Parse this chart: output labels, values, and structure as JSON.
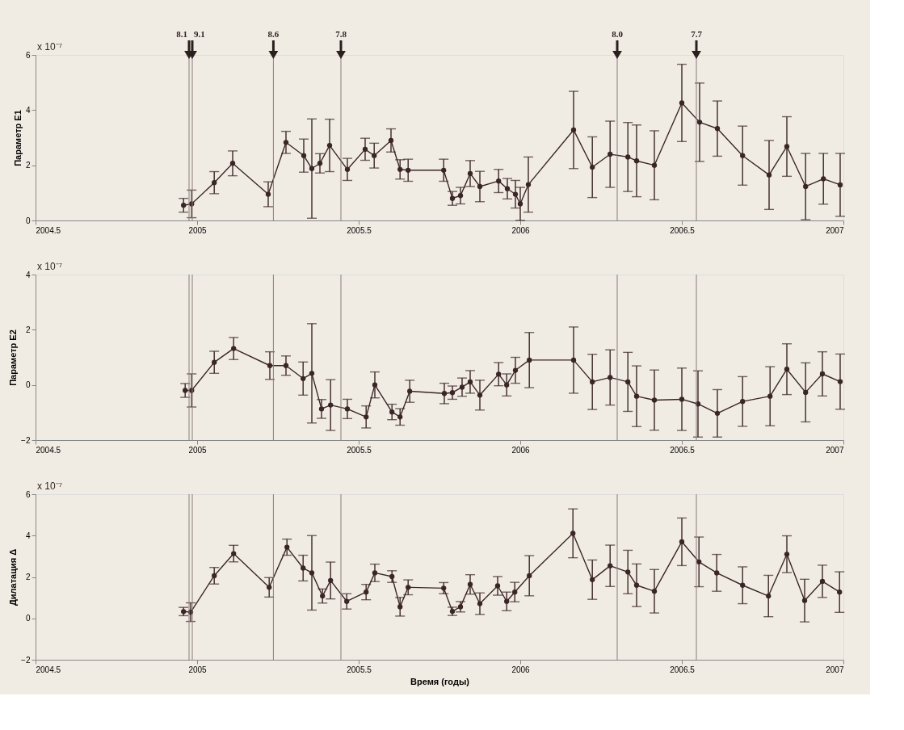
{
  "chart_data": [
    {
      "type": "line",
      "ylabel": "Параметр E1",
      "annotations": [
        "x 10⁻⁷",
        {
          "text": "8.1",
          "x": 2004.975,
          "y": 6
        },
        {
          "text": "9.1",
          "x": 2004.985,
          "y": 6
        },
        {
          "text": "8.6",
          "x": 2005.236,
          "y": 6
        },
        {
          "text": "7.8",
          "x": 2005.445,
          "y": 6
        },
        {
          "text": "8.0",
          "x": 2006.3,
          "y": 6
        },
        {
          "text": "7.7",
          "x": 2006.545,
          "y": 6
        }
      ],
      "xlim": [
        2004.5,
        2007
      ],
      "xticks": [
        2004.5,
        2005,
        2005.5,
        2006,
        2006.5,
        2007
      ],
      "ylim": [
        0,
        6
      ],
      "yticks": [
        0,
        2,
        4,
        6
      ],
      "grid": false,
      "legend": false,
      "marker": "circle",
      "line_style": "solid",
      "x": [
        2004.958,
        2004.983,
        2005.053,
        2005.11,
        2005.22,
        2005.275,
        2005.33,
        2005.355,
        2005.38,
        2005.41,
        2005.465,
        2005.52,
        2005.548,
        2005.6,
        2005.628,
        2005.653,
        2005.763,
        2005.79,
        2005.815,
        2005.845,
        2005.875,
        2005.933,
        2005.96,
        2005.985,
        2006.0,
        2006.025,
        2006.165,
        2006.223,
        2006.278,
        2006.333,
        2006.36,
        2006.415,
        2006.5,
        2006.555,
        2006.61,
        2006.688,
        2006.77,
        2006.825,
        2006.883,
        2006.938,
        2006.99
      ],
      "series": [
        {
          "color": "#3a2626",
          "values": [
            0.55,
            0.6,
            1.37,
            2.07,
            0.95,
            2.83,
            2.35,
            1.88,
            2.07,
            2.72,
            1.85,
            2.58,
            2.35,
            2.9,
            1.85,
            1.82,
            1.82,
            0.8,
            0.9,
            1.7,
            1.23,
            1.43,
            1.15,
            0.95,
            0.6,
            1.3,
            3.28,
            1.93,
            2.4,
            2.3,
            2.16,
            2.0,
            4.26,
            3.56,
            3.33,
            2.35,
            1.65,
            2.68,
            1.23,
            1.51,
            1.29
          ],
          "errors": [
            0.25,
            0.5,
            0.4,
            0.45,
            0.45,
            0.4,
            0.6,
            1.8,
            0.35,
            0.95,
            0.4,
            0.4,
            0.45,
            0.42,
            0.35,
            0.4,
            0.4,
            0.25,
            0.3,
            0.47,
            0.55,
            0.42,
            0.37,
            0.5,
            0.6,
            1.0,
            1.4,
            1.1,
            1.2,
            1.25,
            1.3,
            1.25,
            1.4,
            1.42,
            1.0,
            1.07,
            1.25,
            1.08,
            1.2,
            0.92,
            1.14
          ]
        }
      ],
      "ref_lines": [
        {
          "axis": "x",
          "value": 2004.975,
          "label": null,
          "color": "#8a7a7a"
        },
        {
          "axis": "x",
          "value": 2004.985,
          "label": null,
          "color": "#8a7a7a"
        },
        {
          "axis": "x",
          "value": 2005.236,
          "label": null,
          "color": "#8a7a7a"
        },
        {
          "axis": "x",
          "value": 2005.445,
          "label": null,
          "color": "#8a7a7a"
        },
        {
          "axis": "x",
          "value": 2006.3,
          "label": null,
          "color": "#8a7a7a"
        },
        {
          "axis": "x",
          "value": 2006.545,
          "label": null,
          "color": "#8a7a7a"
        }
      ]
    },
    {
      "type": "line",
      "ylabel": "Параметр E2",
      "annotations": [
        "x 10⁻⁷"
      ],
      "xlim": [
        2004.5,
        2007
      ],
      "xticks": [
        2004.5,
        2005,
        2005.5,
        2006,
        2006.5,
        2007
      ],
      "ylim": [
        -2,
        4
      ],
      "yticks": [
        -2,
        0,
        2,
        4
      ],
      "grid": false,
      "legend": false,
      "marker": "circle",
      "line_style": "solid",
      "x": [
        2004.963,
        2004.983,
        2005.053,
        2005.113,
        2005.225,
        2005.275,
        2005.328,
        2005.355,
        2005.385,
        2005.413,
        2005.465,
        2005.523,
        2005.55,
        2005.603,
        2005.628,
        2005.658,
        2005.765,
        2005.79,
        2005.82,
        2005.845,
        2005.875,
        2005.933,
        2005.958,
        2005.985,
        2006.028,
        2006.165,
        2006.223,
        2006.278,
        2006.333,
        2006.36,
        2006.415,
        2006.5,
        2006.55,
        2006.61,
        2006.688,
        2006.773,
        2006.825,
        2006.883,
        2006.935,
        2006.99
      ],
      "series": [
        {
          "color": "#3a2626",
          "values": [
            -0.2,
            -0.2,
            0.82,
            1.32,
            0.7,
            0.7,
            0.23,
            0.42,
            -0.87,
            -0.73,
            -0.87,
            -1.16,
            0.0,
            -0.98,
            -1.16,
            -0.23,
            -0.31,
            -0.28,
            -0.08,
            0.11,
            -0.37,
            0.39,
            0.0,
            0.53,
            0.9,
            0.9,
            0.11,
            0.27,
            0.11,
            -0.41,
            -0.55,
            -0.52,
            -0.69,
            -1.03,
            -0.6,
            -0.41,
            0.57,
            -0.27,
            0.4,
            0.12
          ],
          "errors": [
            0.25,
            0.6,
            0.4,
            0.4,
            0.5,
            0.35,
            0.6,
            1.8,
            0.34,
            0.92,
            0.35,
            0.4,
            0.47,
            0.28,
            0.3,
            0.4,
            0.37,
            0.24,
            0.33,
            0.41,
            0.54,
            0.42,
            0.4,
            0.47,
            1.0,
            1.2,
            1.0,
            1.0,
            1.07,
            1.1,
            1.09,
            1.13,
            1.2,
            0.86,
            0.9,
            1.07,
            0.92,
            1.07,
            0.8,
            1.0
          ]
        }
      ],
      "ref_lines": [
        {
          "axis": "x",
          "value": 2004.975,
          "label": null,
          "color": "#8a7a7a"
        },
        {
          "axis": "x",
          "value": 2004.985,
          "label": null,
          "color": "#8a7a7a"
        },
        {
          "axis": "x",
          "value": 2005.236,
          "label": null,
          "color": "#8a7a7a"
        },
        {
          "axis": "x",
          "value": 2005.445,
          "label": null,
          "color": "#8a7a7a"
        },
        {
          "axis": "x",
          "value": 2006.3,
          "label": null,
          "color": "#8a7a7a"
        },
        {
          "axis": "x",
          "value": 2006.545,
          "label": null,
          "color": "#8a7a7a"
        }
      ]
    },
    {
      "type": "line",
      "ylabel": "Дилатация Δ",
      "xlabel": "Время (годы)",
      "annotations": [
        "x 10⁻⁷"
      ],
      "xlim": [
        2004.5,
        2007
      ],
      "xticks": [
        2004.5,
        2005,
        2005.5,
        2006,
        2006.5,
        2007
      ],
      "ylim": [
        -2,
        6
      ],
      "yticks": [
        -2,
        0,
        2,
        4,
        6
      ],
      "grid": false,
      "legend": false,
      "marker": "circle",
      "line_style": "solid",
      "x": [
        2004.958,
        2004.98,
        2005.053,
        2005.113,
        2005.223,
        2005.278,
        2005.328,
        2005.355,
        2005.388,
        2005.413,
        2005.463,
        2005.523,
        2005.55,
        2005.603,
        2005.628,
        2005.653,
        2005.763,
        2005.79,
        2005.815,
        2005.845,
        2005.875,
        2005.93,
        2005.958,
        2005.983,
        2006.028,
        2006.163,
        2006.223,
        2006.278,
        2006.333,
        2006.36,
        2006.415,
        2006.5,
        2006.553,
        2006.608,
        2006.688,
        2006.768,
        2006.825,
        2006.88,
        2006.935,
        2006.988
      ],
      "series": [
        {
          "color": "#3a2626",
          "values": [
            0.33,
            0.3,
            2.06,
            3.13,
            1.5,
            3.44,
            2.43,
            2.2,
            1.08,
            1.83,
            0.82,
            1.27,
            2.2,
            2.02,
            0.56,
            1.5,
            1.46,
            0.34,
            0.56,
            1.64,
            0.71,
            1.57,
            0.82,
            1.27,
            2.06,
            4.11,
            1.87,
            2.54,
            2.24,
            1.6,
            1.31,
            3.7,
            2.73,
            2.2,
            1.6,
            1.08,
            3.1,
            0.86,
            1.79,
            1.27
          ],
          "errors": [
            0.2,
            0.45,
            0.4,
            0.4,
            0.47,
            0.39,
            0.62,
            1.8,
            0.34,
            0.89,
            0.37,
            0.37,
            0.42,
            0.28,
            0.45,
            0.36,
            0.27,
            0.2,
            0.25,
            0.47,
            0.52,
            0.45,
            0.45,
            0.47,
            0.97,
            1.18,
            0.95,
            1.0,
            1.05,
            1.03,
            1.05,
            1.15,
            1.2,
            0.89,
            0.89,
            1.0,
            0.89,
            1.03,
            0.78,
            0.98
          ]
        }
      ],
      "ref_lines": [
        {
          "axis": "x",
          "value": 2004.975,
          "label": null,
          "color": "#8a7a7a"
        },
        {
          "axis": "x",
          "value": 2004.985,
          "label": null,
          "color": "#8a7a7a"
        },
        {
          "axis": "x",
          "value": 2005.236,
          "label": null,
          "color": "#8a7a7a"
        },
        {
          "axis": "x",
          "value": 2005.445,
          "label": null,
          "color": "#8a7a7a"
        },
        {
          "axis": "x",
          "value": 2006.3,
          "label": null,
          "color": "#8a7a7a"
        },
        {
          "axis": "x",
          "value": 2006.545,
          "label": null,
          "color": "#8a7a7a"
        }
      ]
    }
  ]
}
